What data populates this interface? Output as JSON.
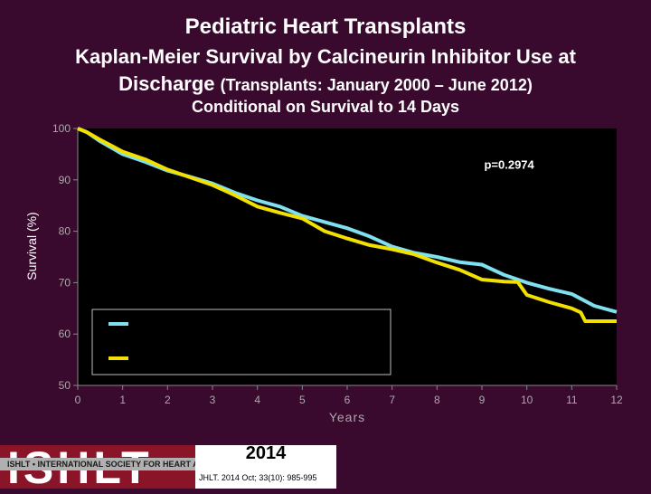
{
  "header": {
    "title": "Pediatric Heart Transplants",
    "subtitle_line1": "Kaplan-Meier Survival by Calcineurin Inhibitor Use at",
    "subtitle_line2": "Discharge",
    "subtitle_line2_small": "(Transplants: January 2000 – June 2012)",
    "condition": "Conditional on Survival to 14 Days"
  },
  "colors": {
    "background": "#3a0a2e",
    "plot_background": "#000000",
    "series_cyan": "#7fe0ef",
    "series_yellow": "#f2e000",
    "text": "#ffffff",
    "axis_text": "#aaaaaa"
  },
  "chart_data": {
    "type": "line",
    "title": "Conditional on Survival to 14 Days",
    "xlabel": "Years",
    "ylabel": "Survival (%)",
    "xlim": [
      0,
      12
    ],
    "ylim": [
      50,
      100
    ],
    "xticks": [
      "0",
      "1",
      "2",
      "3",
      "4",
      "5",
      "6",
      "7",
      "8",
      "9",
      "10",
      "11",
      "12"
    ],
    "yticks": [
      "50",
      "60",
      "70",
      "80",
      "90",
      "100"
    ],
    "annotation": "p=0.2974",
    "legend_placement": "lower-left",
    "legend_labels": [
      "",
      ""
    ],
    "series": [
      {
        "name": "",
        "color": "#7fe0ef",
        "x": [
          0,
          0.2,
          0.5,
          1,
          1.5,
          2,
          2.5,
          3,
          3.5,
          4,
          4.5,
          5,
          5.5,
          6,
          6.5,
          7,
          7.5,
          8,
          8.5,
          9,
          9.5,
          10,
          10.5,
          11,
          11.5,
          12
        ],
        "y": [
          100,
          99.3,
          97.5,
          95,
          93.5,
          91.8,
          90.6,
          89.3,
          87.5,
          86,
          84.8,
          83,
          81.8,
          80.6,
          79,
          77,
          75.8,
          75,
          74,
          73.5,
          71.5,
          70,
          68.8,
          67.8,
          65.5,
          64.3
        ]
      },
      {
        "name": "",
        "color": "#f2e000",
        "x": [
          0,
          0.2,
          0.5,
          1,
          1.5,
          2,
          2.5,
          3,
          3.5,
          4,
          4.5,
          5,
          5.5,
          6,
          6.5,
          7,
          7.5,
          8,
          8.5,
          9,
          9.5,
          9.8,
          10,
          10.5,
          11,
          11.2,
          11.3,
          12
        ],
        "y": [
          100,
          99.3,
          97.8,
          95.5,
          94,
          92,
          90.5,
          89,
          87,
          84.8,
          83.6,
          82.5,
          80,
          78.6,
          77.3,
          76.5,
          75.5,
          73.9,
          72.5,
          70.6,
          70.2,
          70.1,
          67.6,
          66.2,
          65,
          64.2,
          62.5,
          62.5
        ]
      }
    ]
  },
  "footer": {
    "logo_text": "ISHLT",
    "logo_tagline": "ISHLT • INTERNATIONAL SOCIETY FOR HEART AND LUNG TRANSPLANTATION",
    "year": "2014",
    "citation": "JHLT. 2014 Oct; 33(10): 985-995"
  }
}
